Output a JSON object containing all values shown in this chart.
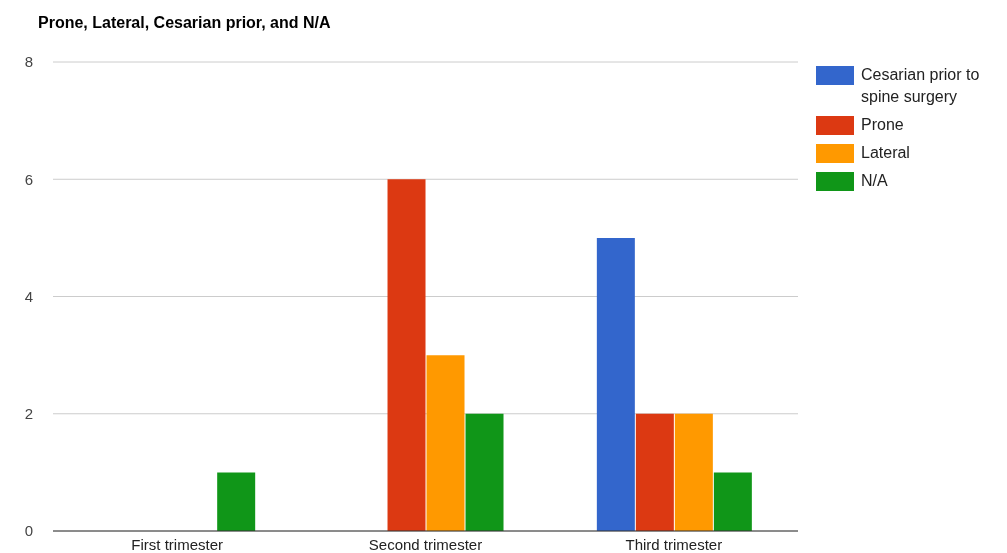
{
  "chart_data": {
    "type": "bar",
    "title": "Prone, Lateral, Cesarian prior, and N/A",
    "categories": [
      "First trimester",
      "Second trimester",
      "Third trimester"
    ],
    "series": [
      {
        "name": "Cesarian prior to spine surgery",
        "color": "#3366cc",
        "values": [
          0,
          0,
          5
        ]
      },
      {
        "name": "Prone",
        "color": "#dc3912",
        "values": [
          0,
          6,
          2
        ]
      },
      {
        "name": "Lateral",
        "color": "#ff9900",
        "values": [
          0,
          3,
          2
        ]
      },
      {
        "name": "N/A",
        "color": "#109618",
        "values": [
          1,
          2,
          1
        ]
      }
    ],
    "ylim": [
      0,
      8
    ],
    "yticks": [
      0,
      2,
      4,
      6,
      8
    ],
    "grid": "y",
    "legend": "top right"
  }
}
